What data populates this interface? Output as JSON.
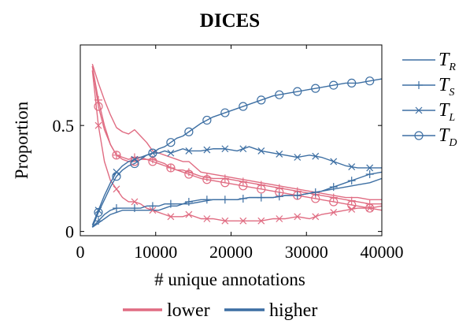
{
  "chart_data": {
    "type": "line",
    "title": "DICES",
    "xlabel": "# unique annotations",
    "ylabel": "Proportion",
    "xlim": [
      0,
      40000
    ],
    "ylim": [
      -0.02,
      0.88
    ],
    "xticks": [
      0,
      10000,
      20000,
      30000,
      40000
    ],
    "xtick_labels": [
      "0",
      "10000",
      "20000",
      "30000",
      "40000"
    ],
    "yticks": [
      0,
      0.5
    ],
    "ytick_labels": [
      "0",
      "0.5"
    ],
    "legend_position": "right",
    "marker_legend": [
      {
        "key": "R",
        "marker": "none"
      },
      {
        "key": "S",
        "marker": "plus"
      },
      {
        "key": "L",
        "marker": "x"
      },
      {
        "key": "D",
        "marker": "circle"
      }
    ],
    "color_legend": [
      {
        "name": "lower",
        "color": "#e06c82"
      },
      {
        "name": "higher",
        "color": "#3d6fa3"
      }
    ],
    "marker_x": {
      "S": [
        2400,
        4800,
        7200,
        9600,
        12000,
        14400,
        16800,
        19200,
        21600,
        24000,
        26400,
        28800,
        31200,
        33600,
        36000,
        38400
      ],
      "L": [
        2400,
        4800,
        7200,
        9600,
        12000,
        14400,
        16800,
        19200,
        21600,
        24000,
        26400,
        28800,
        31200,
        33600,
        36000,
        38400
      ],
      "D": [
        2400,
        4800,
        7200,
        9600,
        12000,
        14400,
        16800,
        19200,
        21600,
        24000,
        26400,
        28800,
        31200,
        33600,
        36000,
        38400
      ]
    },
    "series": [
      {
        "metric": "R",
        "group": "lower",
        "color": "#e06c82",
        "marker": "none",
        "x": [
          1600,
          2400,
          3200,
          4000,
          4800,
          5600,
          6400,
          7200,
          8000,
          8800,
          9600,
          10400,
          11200,
          12000,
          12800,
          13600,
          14400,
          16000,
          17600,
          19200,
          20800,
          22400,
          24000,
          25600,
          27200,
          28800,
          30400,
          32000,
          33600,
          35200,
          36800,
          38400,
          40000
        ],
        "y": [
          0.79,
          0.7,
          0.62,
          0.55,
          0.49,
          0.47,
          0.46,
          0.48,
          0.45,
          0.42,
          0.38,
          0.37,
          0.36,
          0.35,
          0.34,
          0.33,
          0.33,
          0.28,
          0.27,
          0.26,
          0.25,
          0.24,
          0.23,
          0.22,
          0.21,
          0.2,
          0.19,
          0.18,
          0.17,
          0.16,
          0.16,
          0.15,
          0.15
        ]
      },
      {
        "metric": "S",
        "group": "lower",
        "color": "#e06c82",
        "marker": "plus",
        "x": [
          1600,
          2400,
          3200,
          4000,
          4800,
          5600,
          6400,
          7200,
          8000,
          8800,
          9600,
          10400,
          11200,
          12000,
          12800,
          13600,
          14400,
          16000,
          17600,
          19200,
          20800,
          22400,
          24000,
          25600,
          27200,
          28800,
          30400,
          32000,
          33600,
          35200,
          36800,
          38400,
          40000
        ],
        "y": [
          0.78,
          0.62,
          0.5,
          0.41,
          0.36,
          0.35,
          0.34,
          0.35,
          0.35,
          0.34,
          0.34,
          0.33,
          0.32,
          0.3,
          0.29,
          0.29,
          0.28,
          0.26,
          0.25,
          0.25,
          0.24,
          0.23,
          0.22,
          0.21,
          0.2,
          0.19,
          0.18,
          0.17,
          0.16,
          0.15,
          0.14,
          0.13,
          0.13
        ]
      },
      {
        "metric": "L",
        "group": "lower",
        "color": "#e06c82",
        "marker": "x",
        "x": [
          1600,
          2400,
          3200,
          4000,
          4800,
          5600,
          6400,
          7200,
          8000,
          8800,
          9600,
          10400,
          11200,
          12000,
          12800,
          13600,
          14400,
          16000,
          17600,
          19200,
          20800,
          22400,
          24000,
          25600,
          27200,
          28800,
          30400,
          32000,
          33600,
          35200,
          36800,
          38400,
          40000
        ],
        "y": [
          0.76,
          0.5,
          0.33,
          0.24,
          0.2,
          0.16,
          0.14,
          0.14,
          0.13,
          0.11,
          0.1,
          0.09,
          0.08,
          0.07,
          0.07,
          0.07,
          0.08,
          0.06,
          0.06,
          0.05,
          0.05,
          0.05,
          0.05,
          0.06,
          0.06,
          0.07,
          0.06,
          0.08,
          0.09,
          0.1,
          0.11,
          0.11,
          0.12
        ]
      },
      {
        "metric": "D",
        "group": "lower",
        "color": "#e06c82",
        "marker": "circle",
        "x": [
          1600,
          2400,
          3200,
          4000,
          4800,
          5600,
          6400,
          7200,
          8000,
          8800,
          9600,
          10400,
          11200,
          12000,
          12800,
          13600,
          14400,
          16000,
          17600,
          19200,
          20800,
          22400,
          24000,
          25600,
          27200,
          28800,
          30400,
          32000,
          33600,
          35200,
          36800,
          38400,
          40000
        ],
        "y": [
          0.78,
          0.59,
          0.48,
          0.41,
          0.36,
          0.34,
          0.33,
          0.33,
          0.34,
          0.34,
          0.33,
          0.32,
          0.31,
          0.3,
          0.29,
          0.28,
          0.27,
          0.25,
          0.24,
          0.23,
          0.22,
          0.21,
          0.2,
          0.19,
          0.18,
          0.17,
          0.16,
          0.15,
          0.14,
          0.13,
          0.12,
          0.11,
          0.1
        ]
      },
      {
        "metric": "R",
        "group": "higher",
        "color": "#3d6fa3",
        "marker": "none",
        "x": [
          1600,
          2400,
          3200,
          4000,
          4800,
          5600,
          6400,
          7200,
          8000,
          8800,
          9600,
          10400,
          11200,
          12000,
          12800,
          13600,
          14400,
          16000,
          17600,
          19200,
          20800,
          22400,
          24000,
          25600,
          27200,
          28800,
          30400,
          32000,
          33600,
          35200,
          36800,
          38400,
          40000
        ],
        "y": [
          0.02,
          0.04,
          0.06,
          0.08,
          0.09,
          0.1,
          0.1,
          0.1,
          0.1,
          0.1,
          0.1,
          0.1,
          0.11,
          0.12,
          0.12,
          0.13,
          0.13,
          0.14,
          0.15,
          0.15,
          0.15,
          0.16,
          0.16,
          0.16,
          0.17,
          0.17,
          0.18,
          0.19,
          0.2,
          0.21,
          0.22,
          0.23,
          0.25
        ]
      },
      {
        "metric": "S",
        "group": "higher",
        "color": "#3d6fa3",
        "marker": "plus",
        "x": [
          1600,
          2400,
          3200,
          4000,
          4800,
          5600,
          6400,
          7200,
          8000,
          8800,
          9600,
          10400,
          11200,
          12000,
          12800,
          13600,
          14400,
          16000,
          17600,
          19200,
          20800,
          22400,
          24000,
          25600,
          27200,
          28800,
          30400,
          32000,
          33600,
          35200,
          36800,
          38400,
          40000
        ],
        "y": [
          0.02,
          0.05,
          0.08,
          0.1,
          0.11,
          0.11,
          0.11,
          0.11,
          0.11,
          0.12,
          0.12,
          0.12,
          0.13,
          0.13,
          0.13,
          0.13,
          0.14,
          0.15,
          0.15,
          0.15,
          0.15,
          0.16,
          0.16,
          0.16,
          0.17,
          0.17,
          0.18,
          0.19,
          0.21,
          0.23,
          0.25,
          0.27,
          0.28
        ]
      },
      {
        "metric": "L",
        "group": "higher",
        "color": "#3d6fa3",
        "marker": "x",
        "x": [
          1600,
          2400,
          3200,
          4000,
          4800,
          5600,
          6400,
          7200,
          8000,
          8800,
          9600,
          10400,
          11200,
          12000,
          12800,
          13600,
          14400,
          16000,
          17600,
          19200,
          20800,
          22400,
          24000,
          25600,
          27200,
          28800,
          30400,
          32000,
          33600,
          35200,
          36800,
          38400,
          40000
        ],
        "y": [
          0.03,
          0.1,
          0.17,
          0.23,
          0.28,
          0.31,
          0.33,
          0.34,
          0.35,
          0.36,
          0.37,
          0.37,
          0.38,
          0.37,
          0.38,
          0.39,
          0.38,
          0.38,
          0.39,
          0.39,
          0.38,
          0.4,
          0.38,
          0.37,
          0.36,
          0.35,
          0.36,
          0.35,
          0.33,
          0.31,
          0.3,
          0.3,
          0.3
        ]
      },
      {
        "metric": "D",
        "group": "higher",
        "color": "#3d6fa3",
        "marker": "circle",
        "x": [
          1600,
          2400,
          3200,
          4000,
          4800,
          5600,
          6400,
          7200,
          8000,
          8800,
          9600,
          10400,
          11200,
          12000,
          12800,
          13600,
          14400,
          16000,
          17600,
          19200,
          20800,
          22400,
          24000,
          25600,
          27200,
          28800,
          30400,
          32000,
          33600,
          35200,
          36800,
          38400,
          40000
        ],
        "y": [
          0.02,
          0.09,
          0.15,
          0.21,
          0.26,
          0.29,
          0.31,
          0.32,
          0.34,
          0.36,
          0.37,
          0.39,
          0.4,
          0.42,
          0.44,
          0.45,
          0.47,
          0.51,
          0.54,
          0.56,
          0.58,
          0.6,
          0.62,
          0.64,
          0.65,
          0.66,
          0.67,
          0.68,
          0.69,
          0.7,
          0.7,
          0.71,
          0.72
        ]
      }
    ]
  }
}
